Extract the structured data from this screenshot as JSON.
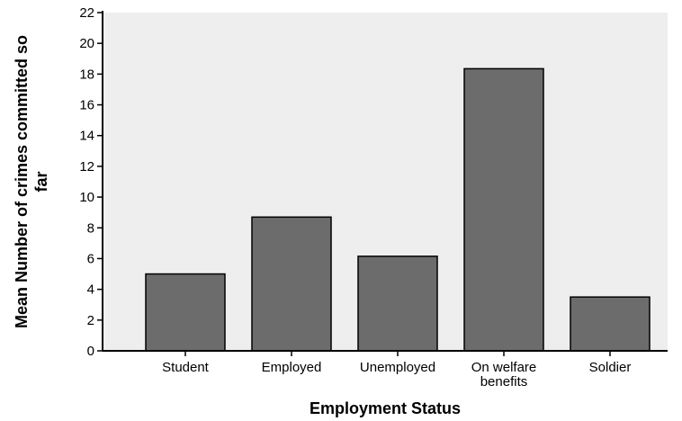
{
  "chart_data": {
    "type": "bar",
    "categories": [
      [
        "Student"
      ],
      [
        "Employed"
      ],
      [
        "Unemployed"
      ],
      [
        "On welfare",
        "benefits"
      ],
      [
        "Soldier"
      ]
    ],
    "values": [
      5.0,
      8.7,
      6.15,
      18.35,
      3.5
    ],
    "xlabel": "Employment Status",
    "ylabel": [
      "Mean Number of crimes committed so",
      "far"
    ],
    "ylim": [
      0,
      22
    ],
    "yticks": [
      0,
      2,
      4,
      6,
      8,
      10,
      12,
      14,
      16,
      18,
      20,
      22
    ],
    "grid": false,
    "colors": {
      "plot_background": "#eeeeee",
      "bar_fill": "#6c6c6c",
      "bar_stroke": "#000000",
      "axis": "#000000"
    }
  }
}
